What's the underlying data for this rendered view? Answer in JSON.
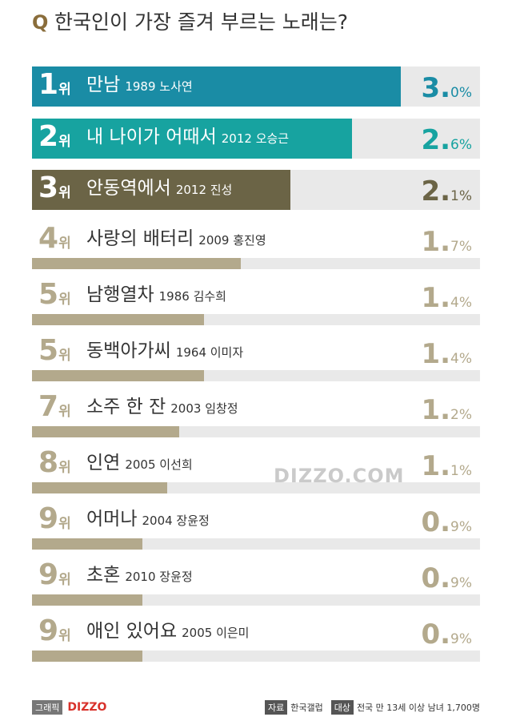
{
  "chart_data": {
    "type": "bar",
    "title_marker": "Q",
    "title": "한국인이 가장 즐겨 부르는 노래는?",
    "ranks": [
      "1위",
      "2위",
      "3위",
      "4위",
      "5위",
      "5위",
      "7위",
      "8위",
      "9위",
      "9위",
      "9위"
    ],
    "categories": [
      "만남",
      "내 나이가 어때서",
      "안동역에서",
      "사랑의 배터리",
      "남행열차",
      "동백아가씨",
      "소주 한 잔",
      "인연",
      "어머나",
      "초혼",
      "애인 있어요"
    ],
    "details": [
      "1989 노사연",
      "2012 오승근",
      "2012 진성",
      "2009 홍진영",
      "1986 김수희",
      "1964 이미자",
      "2003 임창정",
      "2005 이선희",
      "2004 장윤정",
      "2010 장윤정",
      "2005 이은미"
    ],
    "values": [
      3.0,
      2.6,
      2.1,
      1.7,
      1.4,
      1.4,
      1.2,
      1.1,
      0.9,
      0.9,
      0.9
    ],
    "value_labels": [
      "3.0%",
      "2.6%",
      "2.1%",
      "1.7%",
      "1.4%",
      "1.4%",
      "1.2%",
      "1.1%",
      "0.9%",
      "0.9%",
      "0.9%"
    ],
    "colors": [
      "#1a8ca5",
      "#17a3a0",
      "#6b6446",
      "#b3a98c",
      "#b3a98c",
      "#b3a98c",
      "#b3a98c",
      "#b3a98c",
      "#b3a98c",
      "#b3a98c",
      "#b3a98c"
    ],
    "watermark": "DIZZO.COM",
    "footer": {
      "graphic_label": "그래픽",
      "brand": "DIZZO",
      "source_label": "자료",
      "source": "한국갤럽",
      "target_label": "대상",
      "target": "전국 만 13세 이상 남녀 1,700명"
    }
  }
}
